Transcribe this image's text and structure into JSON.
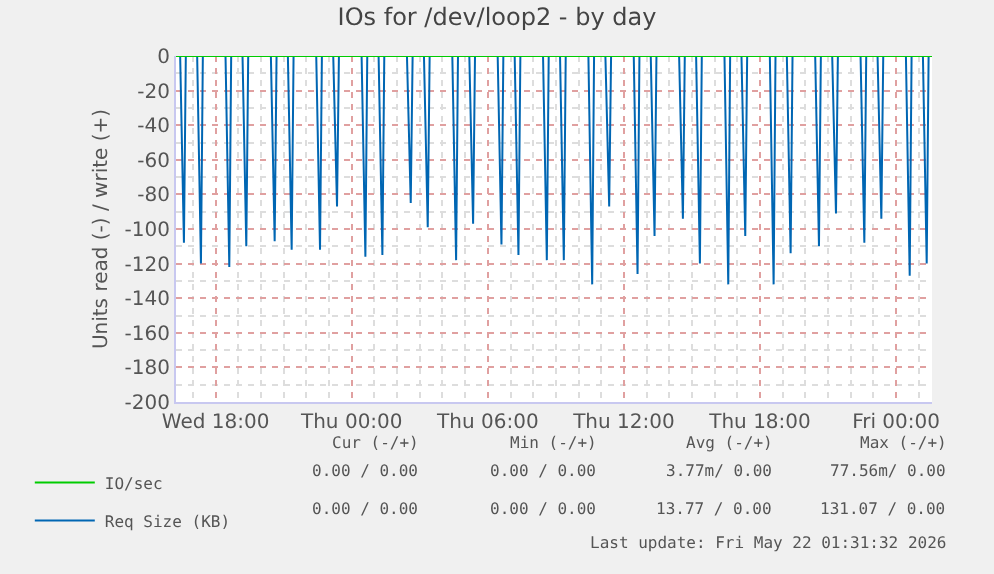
{
  "chart_data": {
    "type": "line",
    "title": "IOs for /dev/loop2 - by day",
    "ylabel": "Units read (-) / write (+)",
    "xlim": [
      "2026-05-20T16:15",
      "2026-05-22T01:35"
    ],
    "xticks": [
      {
        "value": "2026-05-20T18:00",
        "label": "Wed 18:00"
      },
      {
        "value": "2026-05-21T00:00",
        "label": "Thu 00:00"
      },
      {
        "value": "2026-05-21T06:00",
        "label": "Thu 06:00"
      },
      {
        "value": "2026-05-21T12:00",
        "label": "Thu 12:00"
      },
      {
        "value": "2026-05-21T18:00",
        "label": "Thu 18:00"
      },
      {
        "value": "2026-05-22T00:00",
        "label": "Fri 00:00"
      }
    ],
    "ylim": [
      -200,
      0
    ],
    "yticks": [
      -200,
      -180,
      -160,
      -140,
      -120,
      -100,
      -80,
      -60,
      -40,
      -20,
      0
    ],
    "grid": true,
    "legend": "bottom left",
    "line_style": "solid",
    "marker": "none",
    "series": [
      {
        "name": "IO/sec",
        "color": "#00cc00",
        "x": [
          "2026-05-20T16:15",
          "2026-05-22T01:35"
        ],
        "values": [
          0,
          0
        ]
      },
      {
        "name": "Req Size (KB)",
        "color": "#0066b3",
        "x": [
          "2026-05-20T16:15",
          "2026-05-20T16:26",
          "2026-05-20T16:36",
          "2026-05-20T16:41",
          "2026-05-20T17:11",
          "2026-05-20T17:21",
          "2026-05-20T17:26",
          "2026-05-20T18:26",
          "2026-05-20T18:36",
          "2026-05-20T18:41",
          "2026-05-20T19:11",
          "2026-05-20T19:21",
          "2026-05-20T19:26",
          "2026-05-20T20:26",
          "2026-05-20T20:36",
          "2026-05-20T20:41",
          "2026-05-20T21:11",
          "2026-05-20T21:21",
          "2026-05-20T21:26",
          "2026-05-20T22:26",
          "2026-05-20T22:36",
          "2026-05-20T22:41",
          "2026-05-20T23:11",
          "2026-05-20T23:21",
          "2026-05-20T23:26",
          "2026-05-21T00:26",
          "2026-05-21T00:36",
          "2026-05-21T00:41",
          "2026-05-21T01:11",
          "2026-05-21T01:21",
          "2026-05-21T01:26",
          "2026-05-21T02:26",
          "2026-05-21T02:36",
          "2026-05-21T02:41",
          "2026-05-21T03:11",
          "2026-05-21T03:21",
          "2026-05-21T03:26",
          "2026-05-21T04:26",
          "2026-05-21T04:36",
          "2026-05-21T04:41",
          "2026-05-21T05:11",
          "2026-05-21T05:21",
          "2026-05-21T05:26",
          "2026-05-21T06:26",
          "2026-05-21T06:36",
          "2026-05-21T06:41",
          "2026-05-21T07:11",
          "2026-05-21T07:21",
          "2026-05-21T07:26",
          "2026-05-21T08:26",
          "2026-05-21T08:36",
          "2026-05-21T08:41",
          "2026-05-21T09:11",
          "2026-05-21T09:21",
          "2026-05-21T09:26",
          "2026-05-21T10:26",
          "2026-05-21T10:36",
          "2026-05-21T10:41",
          "2026-05-21T11:11",
          "2026-05-21T11:21",
          "2026-05-21T11:26",
          "2026-05-21T12:26",
          "2026-05-21T12:36",
          "2026-05-21T12:41",
          "2026-05-21T13:11",
          "2026-05-21T13:21",
          "2026-05-21T13:26",
          "2026-05-21T14:26",
          "2026-05-21T14:36",
          "2026-05-21T14:41",
          "2026-05-21T15:11",
          "2026-05-21T15:21",
          "2026-05-21T15:26",
          "2026-05-21T16:26",
          "2026-05-21T16:36",
          "2026-05-21T16:41",
          "2026-05-21T17:11",
          "2026-05-21T17:21",
          "2026-05-21T17:26",
          "2026-05-21T18:26",
          "2026-05-21T18:36",
          "2026-05-21T18:41",
          "2026-05-21T19:11",
          "2026-05-21T19:21",
          "2026-05-21T19:26",
          "2026-05-21T20:26",
          "2026-05-21T20:36",
          "2026-05-21T20:41",
          "2026-05-21T21:11",
          "2026-05-21T21:21",
          "2026-05-21T21:26",
          "2026-05-21T22:26",
          "2026-05-21T22:36",
          "2026-05-21T22:41",
          "2026-05-21T23:11",
          "2026-05-21T23:21",
          "2026-05-21T23:26",
          "2026-05-22T00:26",
          "2026-05-22T00:36",
          "2026-05-22T00:41",
          "2026-05-22T01:11",
          "2026-05-22T01:21",
          "2026-05-22T01:26",
          "2026-05-22T01:35"
        ],
        "values": [
          0,
          0,
          -108,
          0,
          0,
          -120,
          0,
          0,
          -122,
          0,
          0,
          -110,
          0,
          0,
          -107,
          0,
          0,
          -112,
          0,
          0,
          -112,
          0,
          0,
          -87,
          0,
          0,
          -116,
          0,
          0,
          -115,
          0,
          0,
          -85,
          0,
          0,
          -99,
          0,
          0,
          -118,
          0,
          0,
          -97,
          0,
          0,
          -109,
          0,
          0,
          -115,
          0,
          0,
          -118,
          0,
          0,
          -118,
          0,
          0,
          -132,
          0,
          0,
          -87,
          0,
          0,
          -126,
          0,
          0,
          -104,
          0,
          0,
          -94,
          0,
          0,
          -120,
          0,
          0,
          -132,
          0,
          0,
          -104,
          0,
          0,
          -132,
          0,
          0,
          -114,
          0,
          0,
          -110,
          0,
          0,
          -91,
          0,
          0,
          -108,
          0,
          0,
          -94,
          0,
          0,
          -127,
          0,
          0,
          -120,
          0,
          0
        ]
      }
    ],
    "annotations": [
      "Cur (-/+)",
      "Min (-/+)",
      "Avg (-/+)",
      "Max (-/+)",
      "0.00 / 0.00",
      "0.00 / 0.00",
      "3.77m/ 0.00",
      "77.56m/ 0.00",
      "0.00 / 0.00",
      "0.00 / 0.00",
      "13.77 / 0.00",
      "131.07 / 0.00",
      "Last update: Fri May 22 01:31:32 2026"
    ]
  }
}
